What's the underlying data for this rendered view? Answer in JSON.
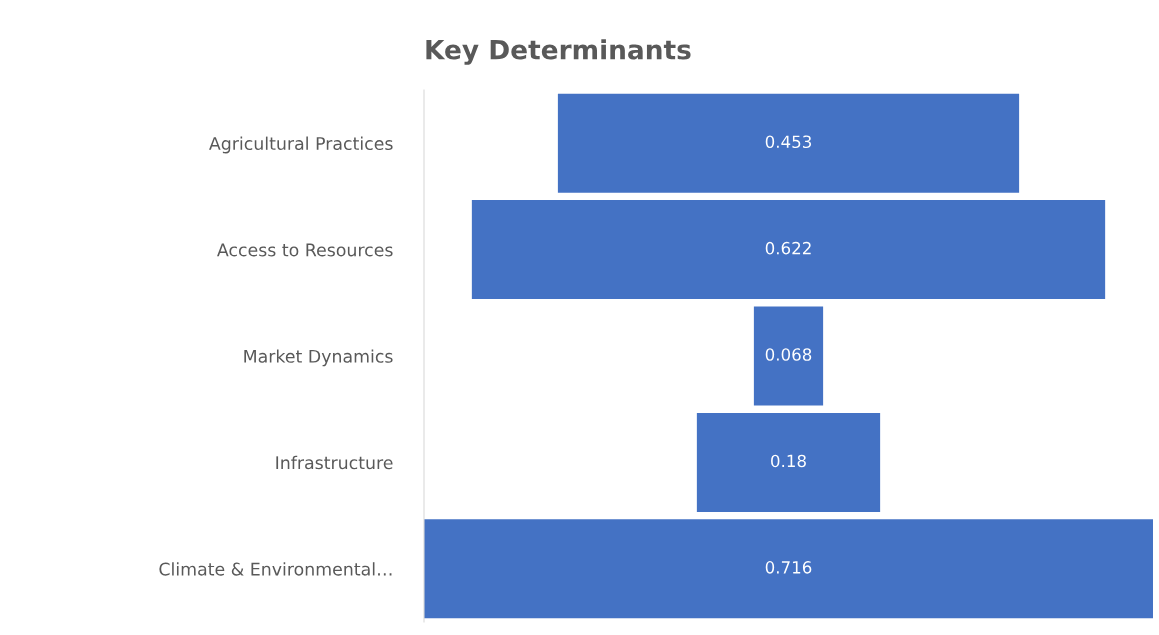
{
  "chart_data": {
    "type": "other",
    "title": "Key Determinants",
    "categories": [
      "Agricultural Practices",
      "Access to Resources",
      "Market Dynamics",
      "Infrastructure",
      "Climate & Environmental…"
    ],
    "values": [
      0.453,
      0.622,
      0.068,
      0.18,
      0.716
    ],
    "color": "#4472c4",
    "data_labels": true
  }
}
